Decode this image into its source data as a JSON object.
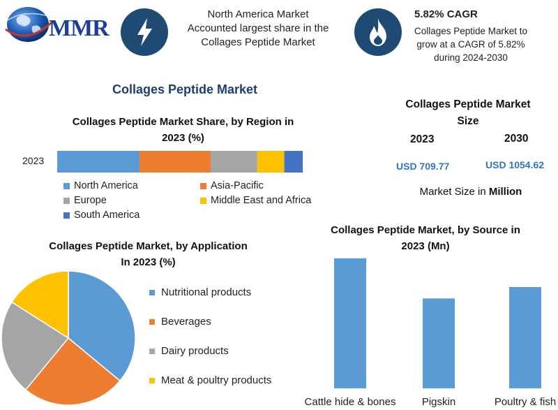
{
  "logo": {
    "text": "MMR"
  },
  "header": {
    "region_note": [
      "North America Market",
      "Accounted largest share in the",
      "Collages Peptide Market"
    ],
    "cagr_title": "5.82% CAGR",
    "cagr_note": [
      "Collages Peptide Market to",
      "grow at a CAGR of 5.82%",
      "during 2024-2030"
    ],
    "icons": [
      "lightning-icon",
      "flame-icon"
    ]
  },
  "main_title": "Collages Peptide Market",
  "market_size": {
    "title": [
      "Collages Peptide Market",
      "Size"
    ],
    "years": [
      {
        "year": "2023",
        "value": "USD 709.77"
      },
      {
        "year": "2030",
        "value": "USD 1054.62"
      }
    ],
    "note_prefix": "Market Size in ",
    "note_unit": "Million"
  },
  "chart_data": [
    {
      "type": "bar",
      "orientation": "horizontal-stacked",
      "title": [
        "Collages Peptide Market Share, by Region in",
        "2023 (%)"
      ],
      "categories": [
        "2023"
      ],
      "series": [
        {
          "name": "North America",
          "values": [
            33.5
          ],
          "color": "#5b9bd5"
        },
        {
          "name": "Asia-Pacific",
          "values": [
            29
          ],
          "color": "#ed7d31"
        },
        {
          "name": "Europe",
          "values": [
            19
          ],
          "color": "#a5a5a5"
        },
        {
          "name": "Middle East and Africa",
          "values": [
            11
          ],
          "color": "#ffc000"
        },
        {
          "name": "South America",
          "values": [
            7.5
          ],
          "color": "#4472c4"
        }
      ],
      "legend_position": "bottom"
    },
    {
      "type": "pie",
      "title": [
        "Collages Peptide Market, by Application",
        "In 2023 (%)"
      ],
      "slices": [
        {
          "name": "Nutritional products",
          "value": 36,
          "color": "#5b9bd5"
        },
        {
          "name": "Beverages",
          "value": 25,
          "color": "#ed7d31"
        },
        {
          "name": "Dairy products",
          "value": 23,
          "color": "#a5a5a5"
        },
        {
          "name": "Meat & poultry products",
          "value": 16,
          "color": "#ffc000"
        }
      ],
      "legend_position": "right"
    },
    {
      "type": "bar",
      "title": [
        "Collages Peptide Market, by Source in",
        "2023 (Mn)"
      ],
      "categories": [
        "Cattle hide & bones",
        "Pigskin",
        "Poultry & fish"
      ],
      "values": [
        285,
        197,
        222
      ],
      "ylim": [
        0,
        300
      ],
      "color": "#5b9bd5",
      "grid": false
    }
  ]
}
